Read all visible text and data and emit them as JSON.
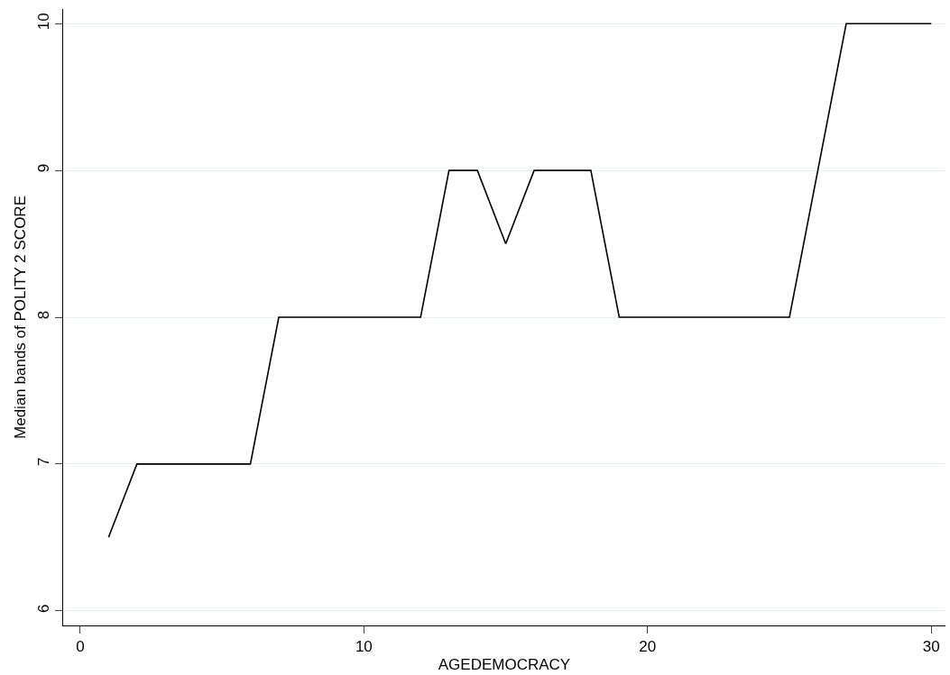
{
  "chart_data": {
    "type": "line",
    "xlabel": "AGEDEMOCRACY",
    "ylabel": "Median bands of POLITY 2 SCORE",
    "x": [
      1,
      2,
      6,
      7,
      12,
      13,
      14,
      15,
      16,
      18,
      19,
      25,
      27,
      30
    ],
    "series": [
      {
        "color": "#000000",
        "values": [
          6.5,
          7,
          7,
          8,
          8,
          9,
          9,
          8.5,
          9,
          9,
          8,
          8,
          10,
          10
        ]
      }
    ],
    "xlim": [
      -0.6,
      30.5
    ],
    "xticks": [
      0,
      10,
      20,
      30
    ],
    "ylim": [
      5.9,
      10.1
    ],
    "yticks": [
      6,
      7,
      8,
      9,
      10
    ],
    "grid": "y",
    "legend": false,
    "marker": "none",
    "line_style": "solid"
  }
}
